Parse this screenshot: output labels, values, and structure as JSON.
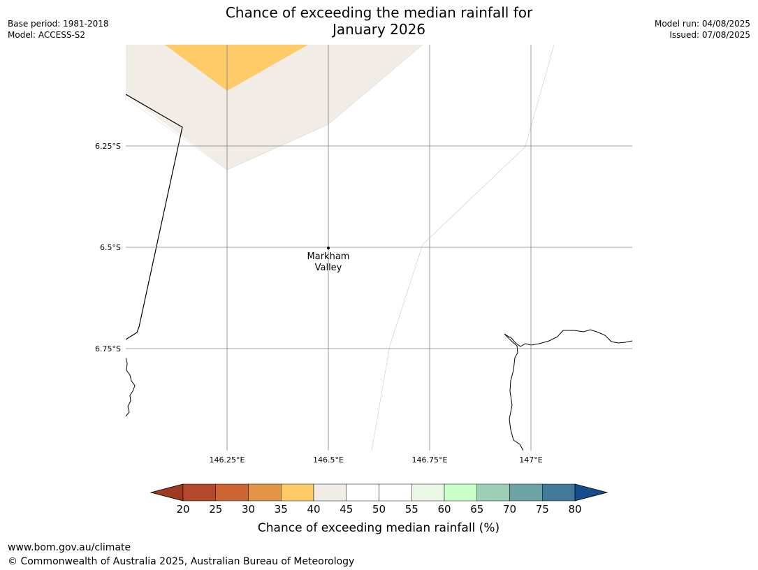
{
  "title_line1": "Chance of exceeding the median rainfall for",
  "title_line2": "January 2026",
  "base_period": "Base period: 1981-2018",
  "model": "Model: ACCESS-S2",
  "model_run": "Model run: 04/08/2025",
  "issued": "Issued: 07/08/2025",
  "lat_labels": [
    "6.25°S",
    "6.5°S",
    "6.75°S"
  ],
  "lon_labels": [
    "146.25°E",
    "146.5°E",
    "146.75°E",
    "147°E"
  ],
  "place": {
    "name_line1": "Markham",
    "name_line2": "Valley"
  },
  "colorbar": {
    "ticks": [
      "20",
      "25",
      "30",
      "35",
      "40",
      "45",
      "50",
      "55",
      "60",
      "65",
      "70",
      "75",
      "80"
    ],
    "colors": [
      "#9e3a22",
      "#b3482a",
      "#cd6432",
      "#e29546",
      "#fecb68",
      "#f1ece6",
      "#ffffff",
      "#ffffff",
      "#eaf7e7",
      "#caffca",
      "#9ed0b8",
      "#6ea3a6",
      "#41799a",
      "#144c8c"
    ],
    "label": "Chance of exceeding median rainfall (%)"
  },
  "footer_url": "www.bom.gov.au/climate",
  "footer_copyright": "© Commonwealth of Australia 2025, Australian Bureau of Meteorology"
}
